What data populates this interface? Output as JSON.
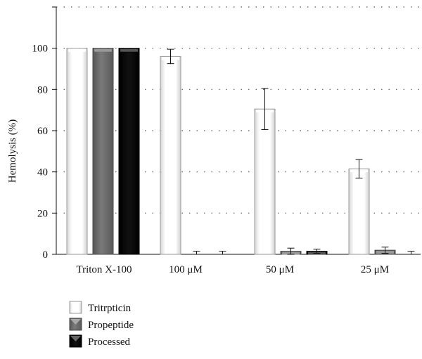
{
  "chart_data": {
    "type": "bar",
    "title": "",
    "xlabel": "",
    "ylabel": "Hemolysis (%)",
    "ylim": [
      0,
      120
    ],
    "yticks": [
      0,
      20,
      40,
      60,
      80,
      100
    ],
    "grid": "dotted horizontal",
    "legend_position": "bottom-left",
    "categories": [
      "Triton X-100",
      "100 μM",
      "50 μM",
      "25 μM"
    ],
    "series": [
      {
        "name": "Tritrpticin",
        "color": "#f2f2f2",
        "values": [
          100,
          96,
          70.5,
          41.5
        ],
        "errors": [
          0,
          3.5,
          10,
          4.5
        ]
      },
      {
        "name": "Propeptide",
        "color": "#6b6b6b",
        "values": [
          100,
          0,
          1.5,
          2
        ],
        "errors": [
          0,
          1.5,
          1.5,
          1.5
        ]
      },
      {
        "name": "Processed",
        "color": "#050505",
        "values": [
          100,
          0,
          1.5,
          0
        ],
        "errors": [
          0,
          1.5,
          1,
          1.5
        ]
      }
    ]
  }
}
